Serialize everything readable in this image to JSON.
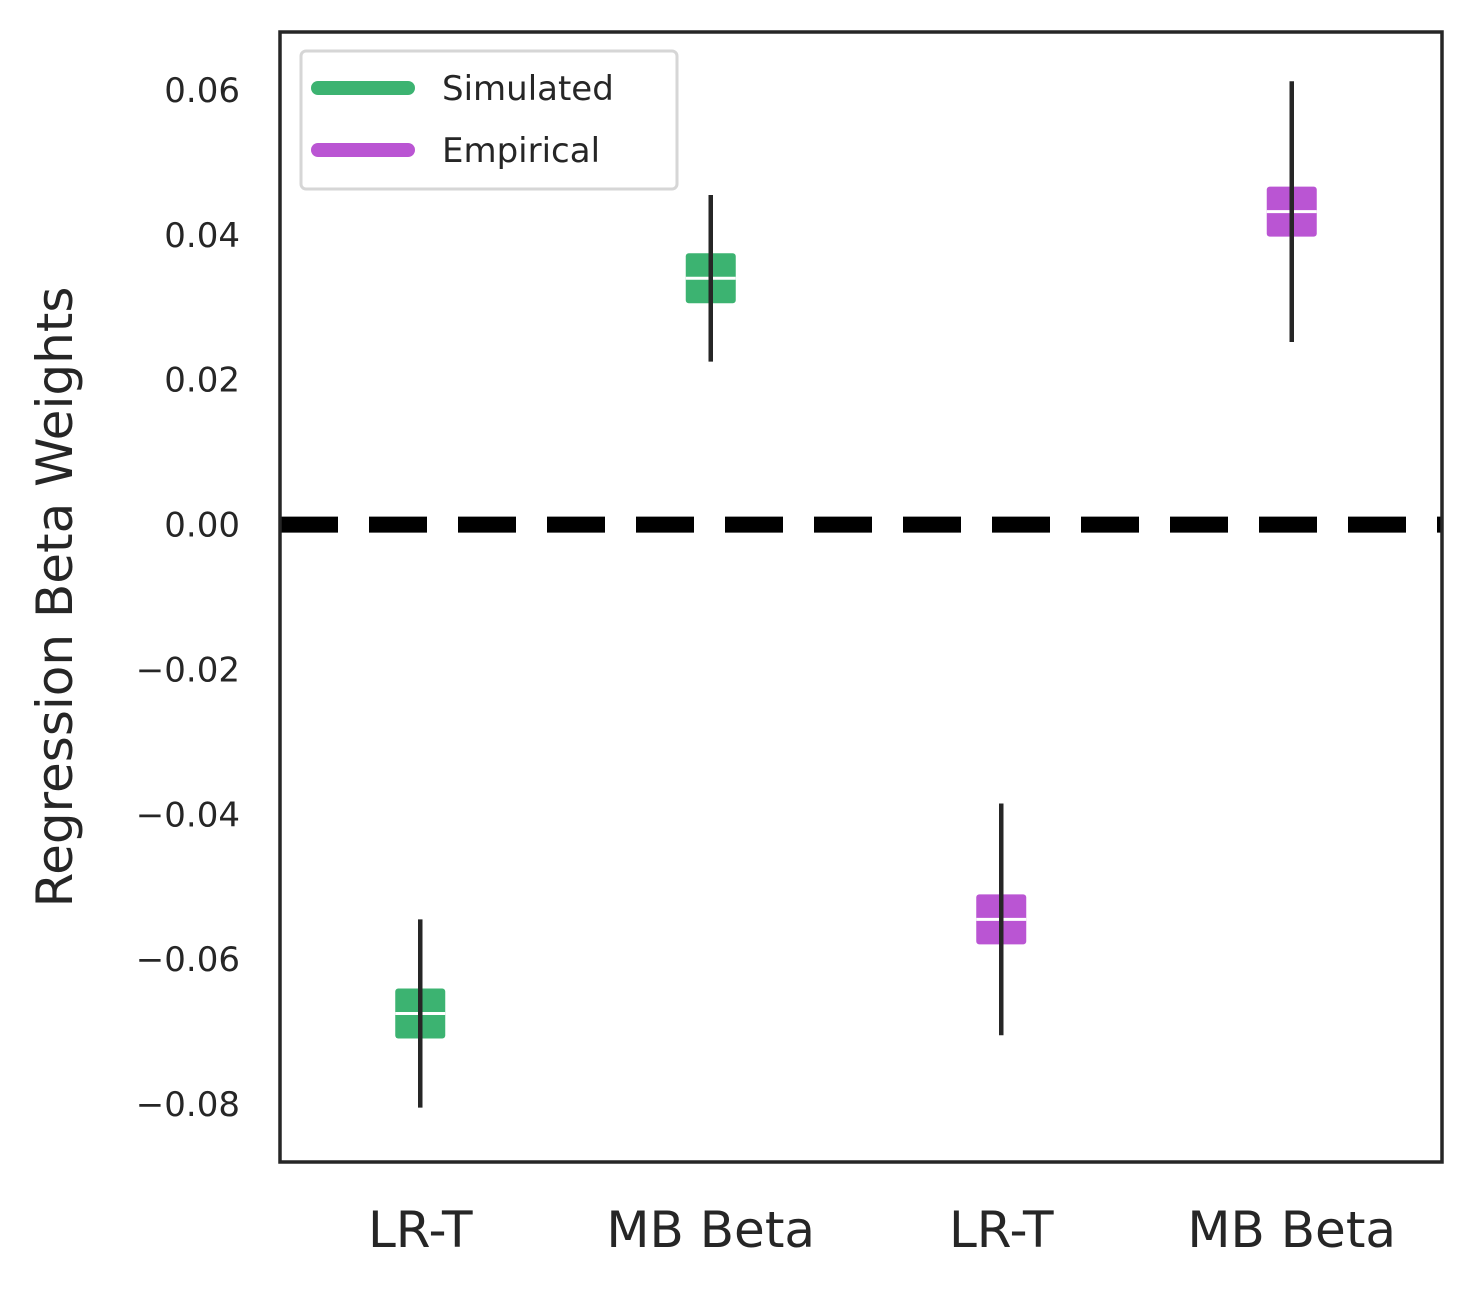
{
  "chart_data": {
    "type": "errorbar",
    "categories": [
      "LR-T",
      "MB Beta",
      "LR-T",
      "MB Beta"
    ],
    "points": [
      {
        "category_index": 0,
        "series": "Simulated",
        "y": -0.0675,
        "err_low": -0.0805,
        "err_high": -0.0545
      },
      {
        "category_index": 1,
        "series": "Simulated",
        "y": 0.034,
        "err_low": 0.0225,
        "err_high": 0.0455
      },
      {
        "category_index": 2,
        "series": "Empirical",
        "y": -0.0545,
        "err_low": -0.0705,
        "err_high": -0.0385
      },
      {
        "category_index": 3,
        "series": "Empirical",
        "y": 0.0432,
        "err_low": 0.0252,
        "err_high": 0.0612
      }
    ],
    "series": [
      {
        "name": "Simulated",
        "color": "#3cb371"
      },
      {
        "name": "Empirical",
        "color": "#ba55d3"
      }
    ],
    "ylabel": "Regression Beta Weights",
    "xlabel": "",
    "ylim": [
      -0.088,
      0.068
    ],
    "yticks": [
      0.06,
      0.04,
      0.02,
      0.0,
      -0.02,
      -0.04,
      -0.06,
      -0.08
    ],
    "ytick_labels": [
      "0.06",
      "0.04",
      "0.02",
      "0.00",
      "−0.02",
      "−0.04",
      "−0.06",
      "−0.08"
    ],
    "reference_line": {
      "y": 0.0,
      "style": "dashed",
      "color": "#000000"
    },
    "legend": {
      "position": "top-left"
    },
    "grid": false
  }
}
